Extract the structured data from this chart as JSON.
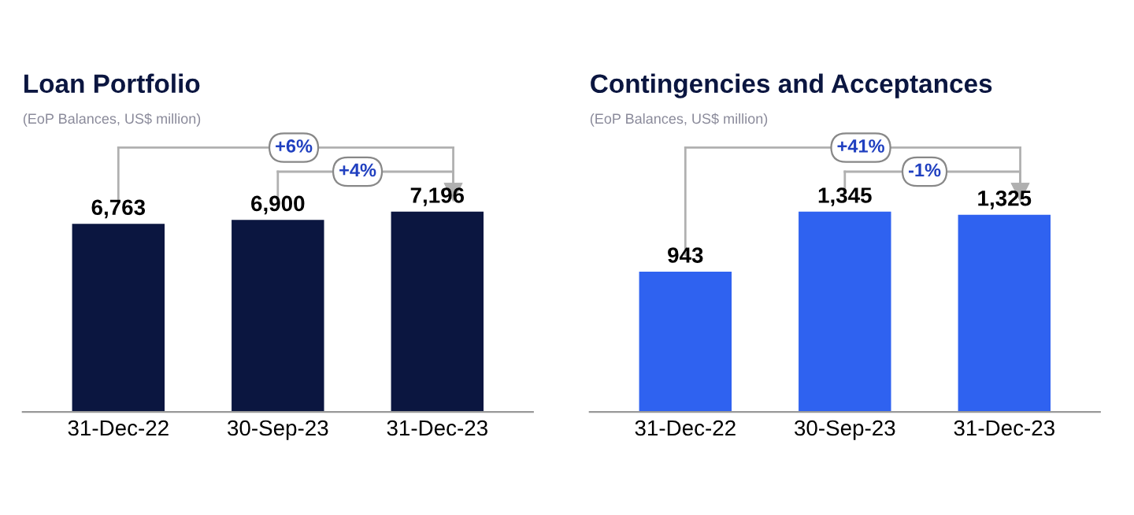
{
  "chart_data": [
    {
      "type": "bar",
      "title": "Loan Portfolio",
      "subtitle": "(EoP Balances, US$ million)",
      "categories": [
        "31-Dec-22",
        "30-Sep-23",
        "31-Dec-23"
      ],
      "values": [
        6763,
        6900,
        7196
      ],
      "color": "#0b1640",
      "data_labels": true,
      "value_labels": [
        "6,763",
        "6,900",
        "7,196"
      ],
      "annotations": [
        "+6%",
        "+4%"
      ]
    },
    {
      "type": "bar",
      "title": "Contingencies and Acceptances",
      "subtitle": "(EoP Balances, US$ million)",
      "categories": [
        "31-Dec-22",
        "30-Sep-23",
        "31-Dec-23"
      ],
      "values": [
        943,
        1345,
        1325
      ],
      "color": "#2f62f0",
      "data_labels": true,
      "value_labels": [
        "943",
        "1,345",
        "1,325"
      ],
      "annotations": [
        "+41%",
        "-1%"
      ]
    }
  ]
}
